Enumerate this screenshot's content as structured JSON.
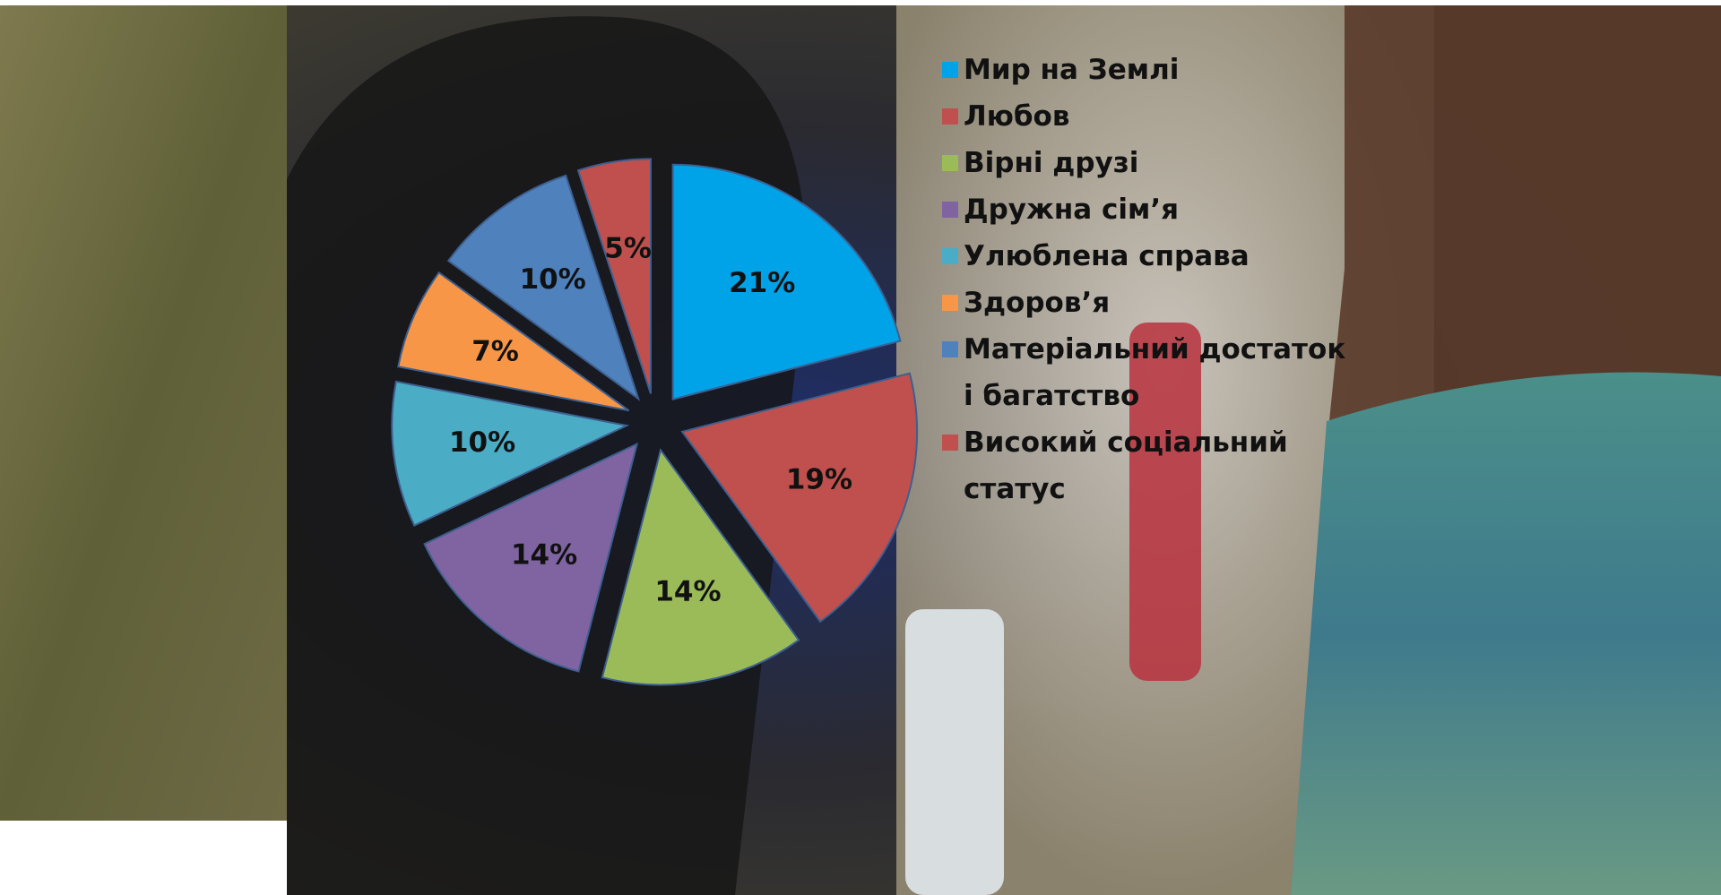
{
  "chart_data": {
    "type": "pie",
    "categories": [
      "Мир на Землі",
      "Любов",
      "Вірні друзі",
      "Дружна сім’я",
      "Улюблена справа",
      "Здоров’я",
      "Матеріальний достаток і багатство",
      "Високий соціальний статус"
    ],
    "values": [
      21,
      19,
      14,
      14,
      10,
      7,
      10,
      5
    ],
    "value_labels": [
      "21%",
      "19%",
      "14%",
      "14%",
      "10%",
      "7%",
      "10%",
      "5%"
    ],
    "colors": [
      "#00a2e8",
      "#c0504d",
      "#9bbb59",
      "#8064a2",
      "#4bacc6",
      "#f79646",
      "#4f81bd",
      "#c0504d"
    ],
    "legend": "right"
  }
}
